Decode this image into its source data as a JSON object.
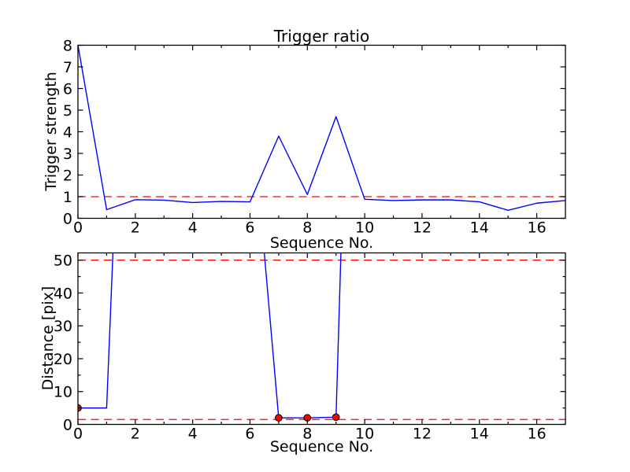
{
  "figure_title": "Trigger ratio",
  "background": "#ffffff",
  "axis_color": "#000000",
  "chart_data": [
    {
      "type": "line",
      "title": "Trigger ratio",
      "xlabel": "Sequence No.",
      "ylabel": "Trigger strength",
      "xlim": [
        0,
        17
      ],
      "ylim": [
        0,
        8
      ],
      "xticks": [
        0,
        2,
        4,
        6,
        8,
        10,
        12,
        14,
        16
      ],
      "xticks_minor": [
        1,
        3,
        5,
        7,
        9,
        11,
        13,
        15
      ],
      "yticks": [
        0,
        1,
        2,
        3,
        4,
        5,
        6,
        7,
        8
      ],
      "yticks_minor": [],
      "grid": false,
      "x": [
        0,
        1,
        2,
        3,
        4,
        5,
        6,
        7,
        8,
        9,
        10,
        11,
        12,
        13,
        14,
        15,
        16,
        17
      ],
      "series": [
        {
          "name": "trigger-strength",
          "color": "#0000ff",
          "values": [
            8.0,
            0.4,
            0.86,
            0.84,
            0.73,
            0.78,
            0.76,
            3.8,
            1.1,
            4.7,
            0.88,
            0.82,
            0.85,
            0.85,
            0.76,
            0.37,
            0.7,
            0.82
          ]
        }
      ],
      "thresholds": [
        {
          "y": 1.0,
          "color": "#ff0000",
          "style": "dashed"
        }
      ]
    },
    {
      "type": "line",
      "title": "",
      "xlabel": "Sequence No.",
      "ylabel": "Distance [pix]",
      "xlim": [
        0,
        17
      ],
      "ylim": [
        0,
        52.2
      ],
      "xticks": [
        0,
        2,
        4,
        6,
        8,
        10,
        12,
        14,
        16
      ],
      "xticks_minor": [
        1,
        3,
        5,
        7,
        9,
        11,
        13,
        15
      ],
      "yticks": [
        0,
        10,
        20,
        30,
        40,
        50
      ],
      "yticks_minor": [
        5,
        15,
        25,
        35,
        45
      ],
      "grid": false,
      "x": [
        0,
        1,
        2,
        3,
        4,
        5,
        6,
        7,
        8,
        9,
        10,
        11,
        12,
        13,
        14,
        15,
        16,
        17
      ],
      "series": [
        {
          "name": "distance",
          "color": "#0000ff",
          "values": [
            5,
            5,
            220,
            300,
            300,
            300,
            102,
            2,
            2,
            2.2,
            295,
            300,
            300,
            300,
            300,
            300,
            300,
            300
          ]
        }
      ],
      "markers": {
        "shape": "circle",
        "color": "#ff0000",
        "edge_color": "#000000",
        "points": [
          [
            0,
            5
          ],
          [
            7,
            2
          ],
          [
            8,
            2
          ],
          [
            9,
            2.2
          ]
        ]
      },
      "thresholds": [
        {
          "y": 50,
          "color": "#ff0000",
          "style": "dashed"
        },
        {
          "y": 1.5,
          "color": "#ff0000",
          "style": "dashed"
        }
      ]
    }
  ]
}
